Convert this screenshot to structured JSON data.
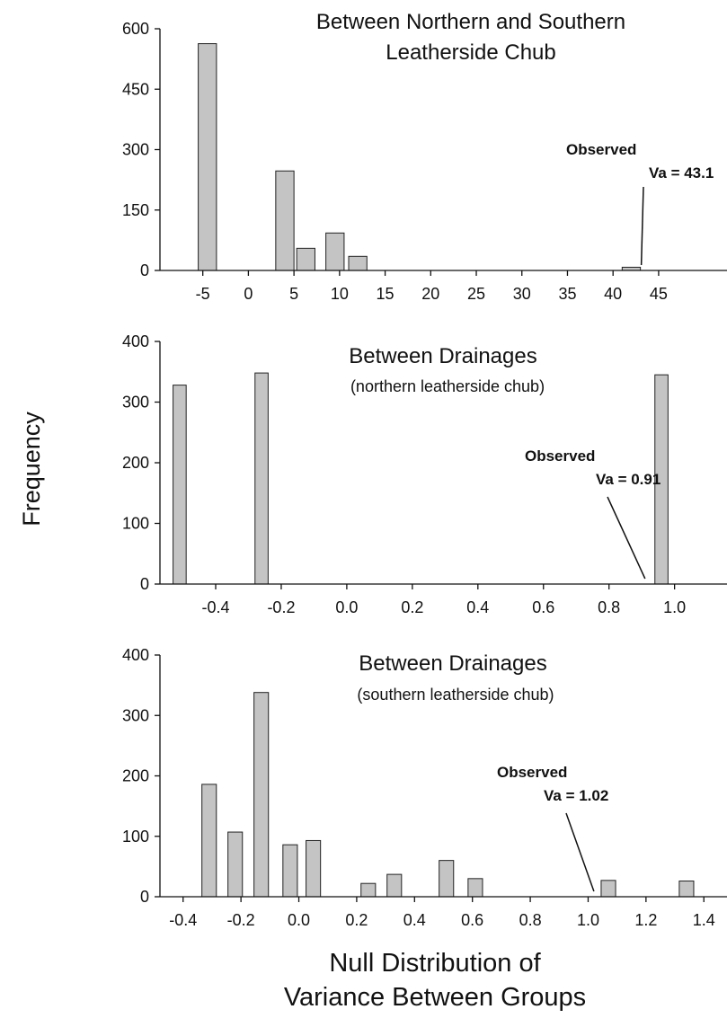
{
  "ylabel": "Frequency",
  "xlabel_line1": "Null Distribution of",
  "xlabel_line2": "Variance Between Groups",
  "colors": {
    "bar": "#c4c4c4",
    "bar_edge": "#222222",
    "axis": "#111111"
  },
  "chart_data": [
    {
      "type": "bar",
      "title": "Between Northern and Southern",
      "title_line2": "Leatherside Chub",
      "subtitle": "",
      "xlim": [
        -9.7,
        52.5
      ],
      "ylim": [
        0,
        600
      ],
      "yticks": [
        0,
        150,
        300,
        450,
        600
      ],
      "xticks": [
        -5,
        0,
        5,
        10,
        15,
        20,
        25,
        30,
        35,
        40,
        45
      ],
      "xticklabels": [
        "-5",
        "0",
        "5",
        "10",
        "15",
        "20",
        "25",
        "30",
        "35",
        "40",
        "45"
      ],
      "bar_width": 2.0,
      "x": [
        -4.5,
        4.0,
        6.3,
        9.5,
        12.0,
        42.0
      ],
      "values": [
        563,
        247,
        55,
        93,
        35,
        8
      ],
      "annotation": {
        "line1": "Observed",
        "line2": "Va = 43.1",
        "value": 43.1
      }
    },
    {
      "type": "bar",
      "title": "Between Drainages",
      "title_line2": "",
      "subtitle": "(northern leatherside chub)",
      "xlim": [
        -0.57,
        1.16
      ],
      "ylim": [
        0,
        400
      ],
      "yticks": [
        0,
        100,
        200,
        300,
        400
      ],
      "xticks": [
        -0.4,
        -0.2,
        0.0,
        0.2,
        0.4,
        0.6,
        0.8,
        1.0
      ],
      "xticklabels": [
        "-0.4",
        "-0.2",
        "0.0",
        "0.2",
        "0.4",
        "0.6",
        "0.8",
        "1.0"
      ],
      "bar_width": 0.04,
      "x": [
        -0.51,
        -0.26,
        0.96
      ],
      "values": [
        328,
        348,
        345
      ],
      "annotation": {
        "line1": "Observed",
        "line2": "Va = 0.91",
        "value": 0.91
      }
    },
    {
      "type": "bar",
      "title": "Between Drainages",
      "title_line2": "",
      "subtitle": "(southern leatherside chub)",
      "xlim": [
        -0.48,
        1.48
      ],
      "ylim": [
        0,
        400
      ],
      "yticks": [
        0,
        100,
        200,
        300,
        400
      ],
      "xticks": [
        -0.4,
        -0.2,
        0.0,
        0.2,
        0.4,
        0.6,
        0.8,
        1.0,
        1.2,
        1.4
      ],
      "xticklabels": [
        "-0.4",
        "-0.2",
        "0.0",
        "0.2",
        "0.4",
        "0.6",
        "0.8",
        "1.0",
        "1.2",
        "1.4"
      ],
      "bar_width": 0.05,
      "x": [
        -0.31,
        -0.22,
        -0.13,
        -0.03,
        0.05,
        0.24,
        0.33,
        0.51,
        0.61,
        1.07,
        1.34
      ],
      "values": [
        186,
        107,
        338,
        86,
        93,
        22,
        37,
        60,
        30,
        27,
        26
      ],
      "annotation": {
        "line1": "Observed",
        "line2": "Va = 1.02",
        "value": 1.02
      }
    }
  ]
}
